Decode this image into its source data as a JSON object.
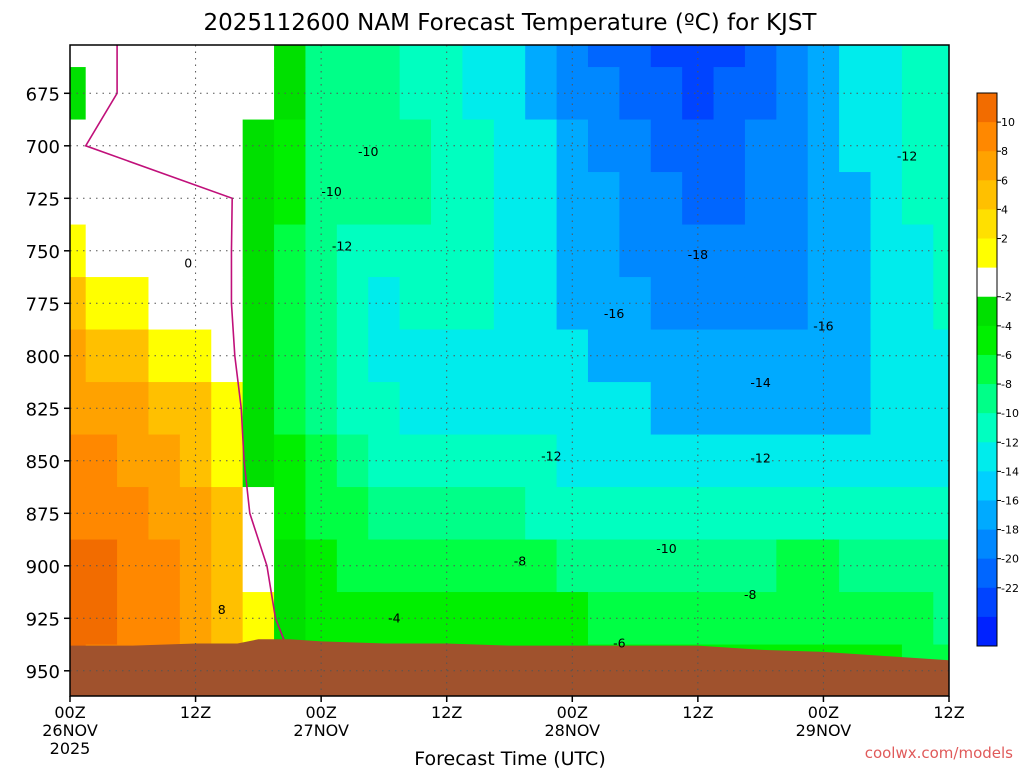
{
  "chart_data": {
    "type": "heatmap",
    "title": "2025112600 NAM Forecast Temperature (ºC) for KJST",
    "xlabel": "Forecast Time (UTC)",
    "credit": "coolwx.com/models",
    "y_axis": {
      "direction": "pressure-decreasing-upward",
      "ylim": [
        962,
        652
      ],
      "ticks": [
        "675",
        "700",
        "725",
        "750",
        "775",
        "800",
        "825",
        "850",
        "875",
        "900",
        "925",
        "950"
      ]
    },
    "x_axis": {
      "xlim_hours": [
        0,
        84
      ],
      "ticks": [
        {
          "hour": 0,
          "line1": "00Z",
          "line2": "26NOV",
          "line3": "2025"
        },
        {
          "hour": 12,
          "line1": "12Z",
          "line2": "",
          "line3": ""
        },
        {
          "hour": 24,
          "line1": "00Z",
          "line2": "27NOV",
          "line3": ""
        },
        {
          "hour": 36,
          "line1": "12Z",
          "line2": "",
          "line3": ""
        },
        {
          "hour": 48,
          "line1": "00Z",
          "line2": "28NOV",
          "line3": ""
        },
        {
          "hour": 60,
          "line1": "12Z",
          "line2": "",
          "line3": ""
        },
        {
          "hour": 72,
          "line1": "00Z",
          "line2": "29NOV",
          "line3": ""
        },
        {
          "hour": 84,
          "line1": "12Z",
          "line2": "",
          "line3": ""
        }
      ]
    },
    "grid": true,
    "colorbar": {
      "placement": "right",
      "labels": [
        "10",
        "8",
        "6",
        "4",
        "2",
        "-2",
        "-4",
        "-6",
        "-8",
        "-10",
        "-12",
        "-14",
        "-16",
        "-18",
        "-20",
        "-22"
      ],
      "colors": [
        "#f26c00",
        "#ff8800",
        "#ffa200",
        "#ffc000",
        "#ffe000",
        "#ffff00",
        "#ffffff",
        "#00e000",
        "#00f000",
        "#00ff44",
        "#00ff88",
        "#00ffc0",
        "#00ecec",
        "#00d0ff",
        "#00aaff",
        "#0088ff",
        "#0066ff",
        "#0044ff",
        "#0022ff"
      ]
    },
    "ground_color": "#a0522d",
    "pressure_levels": [
      650,
      675,
      700,
      725,
      750,
      775,
      800,
      825,
      850,
      875,
      900,
      925,
      950
    ],
    "hours": [
      0,
      3,
      6,
      9,
      12,
      15,
      18,
      21,
      24,
      27,
      30,
      33,
      36,
      39,
      42,
      45,
      48,
      51,
      54,
      57,
      60,
      63,
      66,
      69,
      72,
      75,
      78,
      81,
      84
    ],
    "temperature_c": [
      [
        -1.5,
        -1.5,
        1.5,
        1.5,
        1.0,
        0.5,
        -1.5,
        -3,
        -9,
        -9,
        -10,
        -11,
        -12,
        -13,
        -14,
        -16,
        -18,
        -19,
        -20,
        -21,
        -22,
        -21,
        -19,
        -17,
        -15,
        -14,
        -13,
        -12,
        -11
      ],
      [
        -2.5,
        -1.5,
        1.5,
        1.5,
        1.0,
        0.5,
        -1.5,
        -4,
        -9,
        -10,
        -10,
        -11,
        -12,
        -13,
        -14,
        -15,
        -17,
        -18,
        -19,
        -20,
        -21,
        -20,
        -19,
        -17,
        -16,
        -14,
        -13,
        -12,
        -11
      ],
      [
        -0.5,
        0.5,
        1.0,
        1.0,
        0.5,
        0.5,
        -2.5,
        -5,
        -9,
        -10,
        -10,
        -10,
        -11,
        -12,
        -13,
        -14,
        -16,
        -17,
        -18,
        -19,
        -20,
        -19,
        -18,
        -17,
        -16,
        -14,
        -13,
        -12,
        -12
      ],
      [
        0.5,
        0.5,
        1.0,
        1.0,
        0.5,
        0.5,
        -2.5,
        -6,
        -9,
        -10,
        -10,
        -10,
        -11,
        -12,
        -13,
        -14,
        -15,
        -16,
        -17,
        -18,
        -19,
        -19,
        -18,
        -17,
        -16,
        -15,
        -13,
        -12,
        -12
      ],
      [
        3,
        1.5,
        1.0,
        1.0,
        0.5,
        0.5,
        -3,
        -7,
        -10,
        -11,
        -12,
        -11,
        -11,
        -12,
        -13,
        -14,
        -15,
        -16,
        -17,
        -18,
        -18,
        -18,
        -18,
        -17,
        -16,
        -15,
        -14,
        -13,
        -12
      ],
      [
        4,
        3,
        2.5,
        1.5,
        1.0,
        0.5,
        -3,
        -7,
        -10,
        -12,
        -13,
        -12,
        -12,
        -12,
        -13,
        -14,
        -15,
        -16,
        -16,
        -17,
        -17,
        -17,
        -17,
        -17,
        -16,
        -15,
        -14,
        -13,
        -12
      ],
      [
        6,
        5,
        4,
        3,
        2.5,
        1.0,
        -3,
        -7,
        -10,
        -12,
        -13,
        -13,
        -13,
        -13,
        -13,
        -14,
        -14,
        -15,
        -15,
        -16,
        -16,
        -16,
        -16,
        -16,
        -16,
        -15,
        -14,
        -13,
        -13
      ],
      [
        7,
        7,
        6,
        5,
        4,
        2.5,
        -3,
        -7,
        -9,
        -11,
        -12,
        -13,
        -13,
        -13,
        -13,
        -13,
        -14,
        -14,
        -14,
        -15,
        -15,
        -15,
        -15,
        -15,
        -15,
        -15,
        -14,
        -14,
        -13
      ],
      [
        8,
        8,
        7,
        6,
        5,
        3,
        -2.5,
        -6,
        -8,
        -10,
        -11,
        -12,
        -12,
        -12,
        -12,
        -12,
        -13,
        -13,
        -13,
        -13,
        -13,
        -13,
        -13,
        -13,
        -13,
        -13,
        -13,
        -13,
        -14
      ],
      [
        9,
        9,
        8,
        7,
        6,
        4,
        -1.5,
        -5,
        -7,
        -8,
        -9,
        -10,
        -10,
        -10,
        -10,
        -11,
        -11,
        -11,
        -11,
        -11,
        -11,
        -11,
        -11,
        -11,
        -11,
        -11,
        -11,
        -12,
        -12
      ],
      [
        10,
        10,
        9,
        8,
        7,
        5,
        1.5,
        -4,
        -6,
        -7,
        -7,
        -8,
        -8,
        -8,
        -8,
        -8,
        -9,
        -9,
        -9,
        -9,
        -9,
        -9,
        -9,
        -8,
        -8,
        -9,
        -9,
        -10,
        -10
      ],
      [
        11,
        10,
        9,
        8,
        7,
        5,
        3,
        -2.5,
        -5,
        -5,
        -5,
        -5,
        -6,
        -6,
        -6,
        -6,
        -6,
        -7,
        -7,
        -7,
        -7,
        -7,
        -7,
        -7,
        -7,
        -7,
        -8,
        -8,
        -9
      ],
      [
        10,
        9,
        9,
        8,
        7,
        6,
        4,
        1.0,
        -4,
        -4,
        -4,
        -4,
        -5,
        -5,
        -5,
        -5,
        -5,
        -5,
        -5,
        -5,
        -5,
        -6,
        -6,
        -6,
        -6,
        -6,
        -6,
        -7,
        -7
      ]
    ],
    "contour_labels": [
      {
        "text": "-10",
        "hour": 28.5,
        "p": 703
      },
      {
        "text": "-10",
        "hour": 25.0,
        "p": 722
      },
      {
        "text": "-12",
        "hour": 26.0,
        "p": 748
      },
      {
        "text": "0",
        "hour": 11.3,
        "p": 756
      },
      {
        "text": "-18",
        "hour": 60.0,
        "p": 752
      },
      {
        "text": "-16",
        "hour": 52.0,
        "p": 780
      },
      {
        "text": "-16",
        "hour": 72.0,
        "p": 786
      },
      {
        "text": "-14",
        "hour": 66.0,
        "p": 813
      },
      {
        "text": "-12",
        "hour": 46.0,
        "p": 848
      },
      {
        "text": "-12",
        "hour": 66.0,
        "p": 849
      },
      {
        "text": "-12",
        "hour": 80.0,
        "p": 705
      },
      {
        "text": "-10",
        "hour": 57.0,
        "p": 892
      },
      {
        "text": "-8",
        "hour": 43.0,
        "p": 898
      },
      {
        "text": "-8",
        "hour": 65.0,
        "p": 914
      },
      {
        "text": "8",
        "hour": 14.5,
        "p": 921
      },
      {
        "text": "-4",
        "hour": 31.0,
        "p": 925
      },
      {
        "text": "-6",
        "hour": 52.5,
        "p": 937
      }
    ],
    "terrain_pressure": [
      {
        "hour": 0,
        "p": 938
      },
      {
        "hour": 6,
        "p": 938
      },
      {
        "hour": 12,
        "p": 937
      },
      {
        "hour": 16,
        "p": 937
      },
      {
        "hour": 18,
        "p": 935
      },
      {
        "hour": 21,
        "p": 935
      },
      {
        "hour": 24,
        "p": 936
      },
      {
        "hour": 30,
        "p": 937
      },
      {
        "hour": 36,
        "p": 937
      },
      {
        "hour": 42,
        "p": 938
      },
      {
        "hour": 48,
        "p": 938
      },
      {
        "hour": 54,
        "p": 938
      },
      {
        "hour": 60,
        "p": 938
      },
      {
        "hour": 66,
        "p": 940
      },
      {
        "hour": 72,
        "p": 941
      },
      {
        "hour": 78,
        "p": 943
      },
      {
        "hour": 84,
        "p": 945
      }
    ]
  }
}
